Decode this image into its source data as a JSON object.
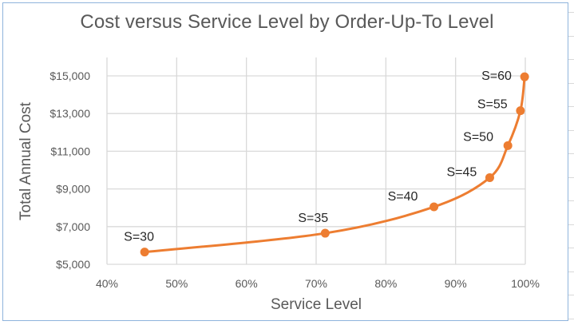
{
  "chart_data": {
    "type": "line",
    "subtype": "scatter-smooth-lines-with-markers",
    "title": "Cost versus Service Level by Order-Up-To Level",
    "xlabel": "Service Level",
    "ylabel": "Total Annual Cost",
    "xlim": [
      0.4,
      1.0
    ],
    "ylim": [
      5000,
      15000
    ],
    "x_ticks": [
      0.4,
      0.5,
      0.6,
      0.7,
      0.8,
      0.9,
      1.0
    ],
    "x_tick_labels": [
      "40%",
      "50%",
      "60%",
      "70%",
      "80%",
      "90%",
      "100%"
    ],
    "y_ticks": [
      5000,
      7000,
      9000,
      11000,
      13000,
      15000
    ],
    "y_tick_labels": [
      "$5,000",
      "$7,000",
      "$9,000",
      "$11,000",
      "$13,000",
      "$15,000"
    ],
    "grid": true,
    "legend": "none",
    "series": [
      {
        "name": "Order-Up-To Level",
        "color": "#ed7d31",
        "points": [
          {
            "label": "S=30",
            "x": 0.454,
            "y": 5650
          },
          {
            "label": "S=35",
            "x": 0.713,
            "y": 6650
          },
          {
            "label": "S=40",
            "x": 0.869,
            "y": 8050
          },
          {
            "label": "S=45",
            "x": 0.949,
            "y": 9600
          },
          {
            "label": "S=50",
            "x": 0.975,
            "y": 11300
          },
          {
            "label": "S=55",
            "x": 0.993,
            "y": 13150
          },
          {
            "label": "S=60",
            "x": 0.999,
            "y": 14950
          }
        ]
      }
    ]
  },
  "style": {
    "line_color": "#ed7d31",
    "grid_color": "#d9d9d9",
    "axis_text_color": "#595959",
    "frame_color": "#8fb4dc"
  }
}
